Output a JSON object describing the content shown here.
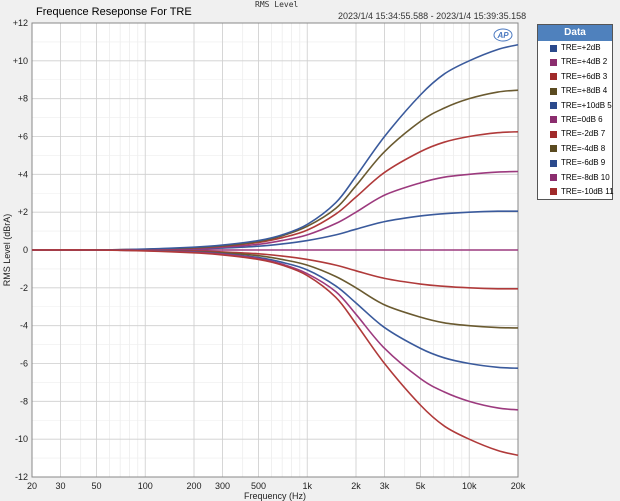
{
  "header": {
    "title": "Frequence Reseponse For TRE",
    "top_label": "RMS Level",
    "time_range": "2023/1/4 15:34:55.588 - 2023/1/4 15:39:35.158",
    "logo": "AP"
  },
  "legend": {
    "title": "Data",
    "items": [
      {
        "label": "TRE=+2dB",
        "color": "#2b4a8c"
      },
      {
        "label": "TRE=+4dB  2",
        "color": "#8b2d6e"
      },
      {
        "label": "TRE=+6dB  3",
        "color": "#a02a2a"
      },
      {
        "label": "TRE=+8dB  4",
        "color": "#5a4a20"
      },
      {
        "label": "TRE=+10dB  5",
        "color": "#2b4a8c"
      },
      {
        "label": "TRE=0dB  6",
        "color": "#8b2d6e"
      },
      {
        "label": "TRE=-2dB  7",
        "color": "#a02a2a"
      },
      {
        "label": "TRE=-4dB  8",
        "color": "#5a4a20"
      },
      {
        "label": "TRE=-6dB  9",
        "color": "#2b4a8c"
      },
      {
        "label": "TRE=-8dB  10",
        "color": "#8b2d6e"
      },
      {
        "label": "TRE=-10dB  11",
        "color": "#a02a2a"
      }
    ]
  },
  "chart_data": {
    "type": "line",
    "title": "Frequence Reseponse For TRE",
    "xlabel": "Frequency (Hz)",
    "ylabel": "RMS Level (dBrA)",
    "x_scale": "log",
    "xlim": [
      20,
      20000
    ],
    "ylim": [
      -12,
      12
    ],
    "grid": true,
    "legend_position": "right",
    "x_ticks": [
      20,
      30,
      50,
      100,
      200,
      300,
      500,
      1000,
      2000,
      3000,
      5000,
      10000,
      20000
    ],
    "x_tick_labels": [
      "20",
      "30",
      "50",
      "100",
      "200",
      "300",
      "500",
      "1k",
      "2k",
      "3k",
      "5k",
      "10k",
      "20k"
    ],
    "y_ticks": [
      -12,
      -10,
      -8,
      -6,
      -4,
      -2,
      0,
      2,
      4,
      6,
      8,
      10,
      12
    ],
    "y_tick_labels": [
      "-12",
      "-10",
      "-8",
      "-6",
      "-4",
      "-2",
      "0",
      "+2",
      "+4",
      "+6",
      "+8",
      "+10",
      "+12"
    ],
    "x": [
      20,
      50,
      100,
      200,
      300,
      500,
      700,
      1000,
      1500,
      2000,
      3000,
      5000,
      7000,
      10000,
      15000,
      20000
    ],
    "series": [
      {
        "name": "TRE=+2dB",
        "color": "#3a5a9c",
        "values": [
          0,
          0,
          0.02,
          0.05,
          0.1,
          0.2,
          0.32,
          0.5,
          0.8,
          1.1,
          1.5,
          1.8,
          1.92,
          2.0,
          2.05,
          2.05
        ]
      },
      {
        "name": "TRE=+4dB  2",
        "color": "#9c3a7e",
        "values": [
          0,
          0,
          0.03,
          0.08,
          0.15,
          0.3,
          0.5,
          0.8,
          1.4,
          2.0,
          2.9,
          3.55,
          3.85,
          4.0,
          4.12,
          4.15
        ]
      },
      {
        "name": "TRE=+6dB  3",
        "color": "#b03a3a",
        "values": [
          0,
          0,
          0.03,
          0.1,
          0.2,
          0.4,
          0.65,
          1.05,
          1.9,
          2.8,
          4.1,
          5.2,
          5.7,
          6.0,
          6.2,
          6.25
        ]
      },
      {
        "name": "TRE=+8dB  4",
        "color": "#6a5a30",
        "values": [
          0,
          0,
          0.04,
          0.12,
          0.22,
          0.45,
          0.75,
          1.25,
          2.2,
          3.4,
          5.2,
          6.8,
          7.5,
          8.0,
          8.35,
          8.45
        ]
      },
      {
        "name": "TRE=+10dB  5",
        "color": "#3a5a9c",
        "values": [
          0,
          0,
          0.05,
          0.15,
          0.26,
          0.5,
          0.8,
          1.35,
          2.5,
          3.9,
          6.0,
          8.2,
          9.3,
          10.0,
          10.6,
          10.85
        ]
      },
      {
        "name": "TRE=0dB  6",
        "color": "#9c3a7e",
        "values": [
          0,
          0,
          0,
          0,
          0,
          0,
          0,
          0,
          0,
          0,
          0,
          0,
          0,
          0,
          0,
          0
        ]
      },
      {
        "name": "TRE=-2dB  7",
        "color": "#b03a3a",
        "values": [
          0,
          0,
          -0.02,
          -0.05,
          -0.1,
          -0.2,
          -0.32,
          -0.5,
          -0.8,
          -1.1,
          -1.5,
          -1.8,
          -1.92,
          -2.0,
          -2.05,
          -2.05
        ]
      },
      {
        "name": "TRE=-4dB  8",
        "color": "#6a5a30",
        "values": [
          0,
          0,
          -0.03,
          -0.08,
          -0.15,
          -0.3,
          -0.5,
          -0.8,
          -1.4,
          -2.0,
          -2.9,
          -3.55,
          -3.85,
          -4.0,
          -4.1,
          -4.12
        ]
      },
      {
        "name": "TRE=-6dB  9",
        "color": "#3a5a9c",
        "values": [
          0,
          0,
          -0.03,
          -0.1,
          -0.2,
          -0.4,
          -0.65,
          -1.05,
          -1.9,
          -2.8,
          -4.1,
          -5.2,
          -5.7,
          -6.0,
          -6.2,
          -6.25
        ]
      },
      {
        "name": "TRE=-8dB  10",
        "color": "#9c3a7e",
        "values": [
          0,
          0,
          -0.04,
          -0.12,
          -0.22,
          -0.45,
          -0.75,
          -1.25,
          -2.2,
          -3.4,
          -5.2,
          -6.8,
          -7.5,
          -8.0,
          -8.35,
          -8.45
        ]
      },
      {
        "name": "TRE=-10dB  11",
        "color": "#b03a3a",
        "values": [
          0,
          0,
          -0.05,
          -0.15,
          -0.26,
          -0.5,
          -0.8,
          -1.35,
          -2.5,
          -3.9,
          -6.0,
          -8.2,
          -9.3,
          -10.0,
          -10.6,
          -10.85
        ]
      }
    ]
  }
}
